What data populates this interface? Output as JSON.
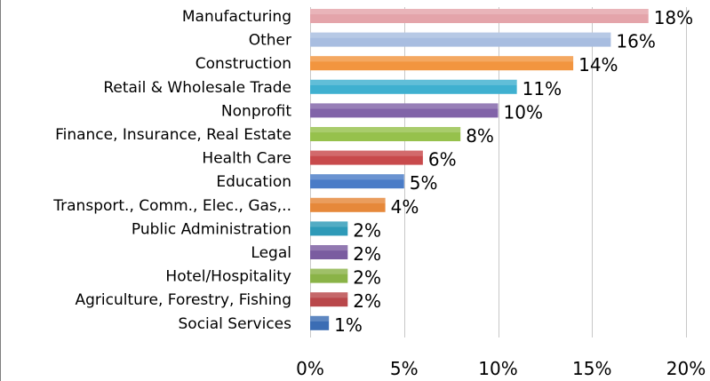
{
  "chart_data": {
    "type": "bar",
    "orientation": "horizontal",
    "categories": [
      "Manufacturing",
      "Other",
      "Construction",
      "Retail & Wholesale Trade",
      "Nonprofit",
      "Finance, Insurance, Real Estate",
      "Health Care",
      "Education",
      "Transport., Comm., Elec., Gas,..",
      "Public Administration",
      "Legal",
      "Hotel/Hospitality",
      "Agriculture, Forestry, Fishing",
      "Social Services"
    ],
    "values": [
      18,
      16,
      14,
      11,
      10,
      8,
      6,
      5,
      4,
      2,
      2,
      2,
      2,
      1
    ],
    "value_labels": [
      "18%",
      "16%",
      "14%",
      "11%",
      "10%",
      "8%",
      "6%",
      "5%",
      "4%",
      "2%",
      "2%",
      "2%",
      "2%",
      "1%"
    ],
    "colors": [
      "#e4a4aa",
      "#a8bde0",
      "#f2953f",
      "#3fb0d0",
      "#8163a8",
      "#96c14c",
      "#c84a4c",
      "#4a7cc7",
      "#e6883a",
      "#2e9ab8",
      "#7a5ca0",
      "#8ab347",
      "#b9474a",
      "#3b6db4"
    ],
    "xlim": [
      0,
      20
    ],
    "xticks": [
      0,
      5,
      10,
      15,
      20
    ],
    "xtick_labels": [
      "0%",
      "5%",
      "10%",
      "15%",
      "20%"
    ],
    "grid": true,
    "legend": "none",
    "title": "",
    "xlabel": "",
    "ylabel": ""
  }
}
